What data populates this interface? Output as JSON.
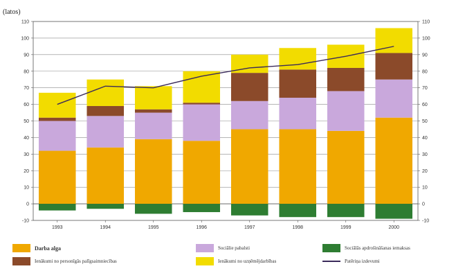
{
  "chart_data": {
    "type": "bar",
    "stacked": true,
    "title": "",
    "unit_label": "(latos)",
    "categories": [
      "1993",
      "1994",
      "1995",
      "1996",
      "1997",
      "1998",
      "1999",
      "2000"
    ],
    "ylim": [
      -10,
      110
    ],
    "yticks": [
      -10,
      0,
      10,
      20,
      30,
      40,
      50,
      60,
      70,
      80,
      90,
      100,
      110
    ],
    "ytick_labels": [
      "-10",
      "0",
      "10",
      "20",
      "30",
      "40",
      "50",
      "60",
      "70",
      "80",
      "90",
      "100",
      "110"
    ],
    "grid": true,
    "series": [
      {
        "name": "Darba alga",
        "color": "#f0a800",
        "values": [
          32,
          34,
          39,
          38,
          45,
          45,
          44,
          52
        ]
      },
      {
        "name": "Sociālie pabalsti",
        "color": "#c9a8dc",
        "values": [
          18,
          19,
          16,
          22,
          17,
          19,
          24,
          23
        ]
      },
      {
        "name": "Ienākumi no personīgās palīgsaimniecības",
        "color": "#8b4a2a",
        "values": [
          2,
          6,
          2,
          1,
          17,
          17,
          14,
          16
        ]
      },
      {
        "name": "Ienākumi no uzņēmējdarbības",
        "color": "#f2dc00",
        "values": [
          15,
          16,
          14,
          19,
          11,
          13,
          14,
          15
        ]
      },
      {
        "name": "Sociālās apdrošināšanas iemaksas",
        "color": "#2e7d32",
        "values": [
          -4,
          -3,
          -6,
          -5,
          -7,
          -8,
          -8,
          -9
        ]
      }
    ],
    "line_series": {
      "name": "Patēriņa izdevumi",
      "color": "#3a2a5a",
      "values": [
        60,
        71,
        70,
        77,
        82,
        84,
        89,
        95
      ]
    },
    "legend": {
      "items": [
        {
          "label": "Darba alga",
          "series": 0,
          "bold": true
        },
        {
          "label": "Sociālie pabalsti",
          "series": 1
        },
        {
          "label": "Sociālās apdrošināšanas iemaksas",
          "series": 4
        },
        {
          "label": "Ienākumi no personīgās palīgsaimniecības",
          "series": 2
        },
        {
          "label": "Ienākumi no uzņēmējdarbības",
          "series": 3
        },
        {
          "label": "Patēriņa izdevumi",
          "line": true
        }
      ]
    }
  }
}
